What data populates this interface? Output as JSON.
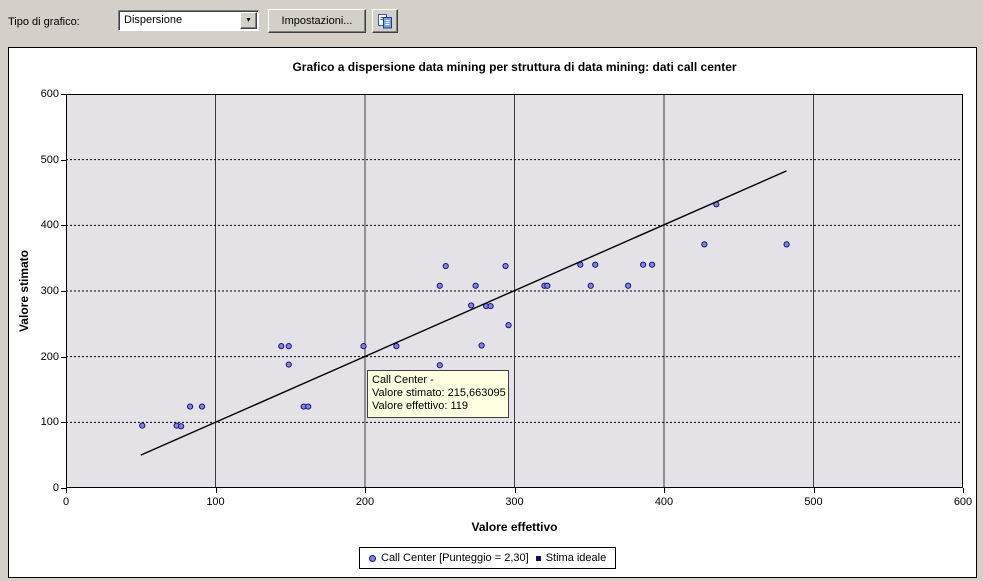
{
  "toolbar": {
    "type_label": "Tipo di grafico:",
    "dropdown_value": "Dispersione",
    "settings_label": "Impostazioni..."
  },
  "chart": {
    "title": "Grafico a dispersione data mining per struttura di data mining: dati call center",
    "xlabel": "Valore effettivo",
    "ylabel": "Valore stimato"
  },
  "tooltip": {
    "line1": "Call Center -",
    "line2": "Valore stimato: 215,663095",
    "line3": "Valore effettivo: 119"
  },
  "legend": {
    "series_label": "Call Center [Punteggio = 2,30]",
    "line_label": "Stima ideale"
  },
  "chart_data": {
    "type": "scatter",
    "title": "Grafico a dispersione data mining per struttura di data mining: dati call center",
    "xlabel": "Valore effettivo",
    "ylabel": "Valore stimato",
    "xlim": [
      0,
      600
    ],
    "ylim": [
      0,
      600
    ],
    "x_ticks": [
      0,
      100,
      200,
      300,
      400,
      500,
      600
    ],
    "y_ticks": [
      0,
      100,
      200,
      300,
      400,
      500,
      600
    ],
    "grid": true,
    "legend_position": "bottom",
    "series": [
      {
        "name": "Call Center [Punteggio = 2,30]",
        "type": "scatter",
        "points": [
          [
            51,
            95
          ],
          [
            74,
            95
          ],
          [
            77,
            94
          ],
          [
            83,
            124
          ],
          [
            91,
            124
          ],
          [
            144,
            216
          ],
          [
            149,
            216
          ],
          [
            149,
            188
          ],
          [
            159,
            124
          ],
          [
            162,
            124
          ],
          [
            199,
            216
          ],
          [
            221,
            216
          ],
          [
            250,
            187
          ],
          [
            250,
            308
          ],
          [
            254,
            338
          ],
          [
            271,
            278
          ],
          [
            274,
            308
          ],
          [
            278,
            217
          ],
          [
            281,
            277
          ],
          [
            284,
            277
          ],
          [
            294,
            338
          ],
          [
            296,
            248
          ],
          [
            320,
            308
          ],
          [
            322,
            308
          ],
          [
            344,
            340
          ],
          [
            351,
            308
          ],
          [
            354,
            340
          ],
          [
            376,
            308
          ],
          [
            386,
            340
          ],
          [
            392,
            340
          ],
          [
            427,
            371
          ],
          [
            435,
            432
          ],
          [
            482,
            371
          ]
        ]
      },
      {
        "name": "Stima ideale",
        "type": "line",
        "points": [
          [
            50,
            50
          ],
          [
            482,
            483
          ]
        ]
      }
    ],
    "colors": {
      "point_fill": "#8585d6",
      "point_stroke": "#14147a",
      "ideal_line": "#000000",
      "plot_bg": "#e4e2e7",
      "grid_vertical": "#3c3c3c",
      "grid_horizontal": "#000000",
      "tooltip_bg": "#ffffe1"
    }
  }
}
